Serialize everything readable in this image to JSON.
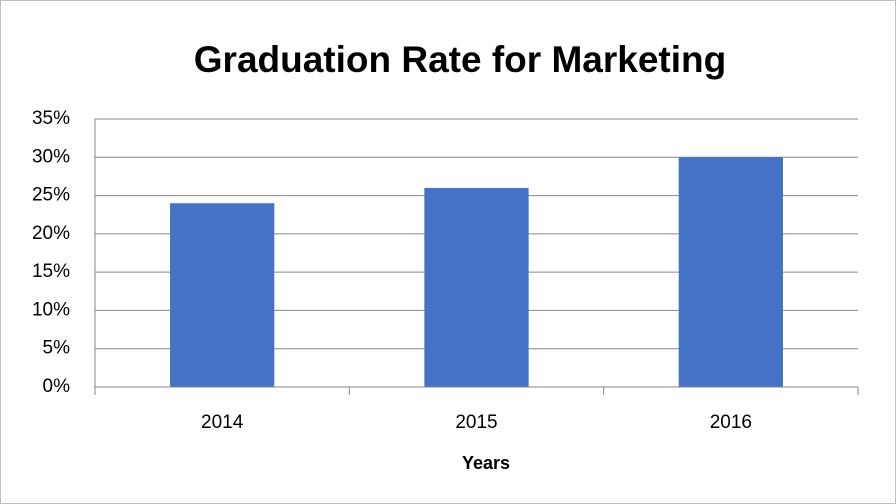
{
  "chart_data": {
    "type": "bar",
    "title": "Graduation Rate for Marketing",
    "categories": [
      "2014",
      "2015",
      "2016"
    ],
    "values": [
      24,
      26,
      30
    ],
    "color": "#4472c4",
    "x_label": "Years",
    "ylim": [
      0,
      35
    ],
    "yticks": [
      {
        "value": 0,
        "label": "0%"
      },
      {
        "value": 5,
        "label": "5%"
      },
      {
        "value": 10,
        "label": "10%"
      },
      {
        "value": 15,
        "label": "15%"
      },
      {
        "value": 20,
        "label": "20%"
      },
      {
        "value": 25,
        "label": "25%"
      },
      {
        "value": 30,
        "label": "30%"
      },
      {
        "value": 35,
        "label": "35%"
      }
    ],
    "grid": true
  }
}
